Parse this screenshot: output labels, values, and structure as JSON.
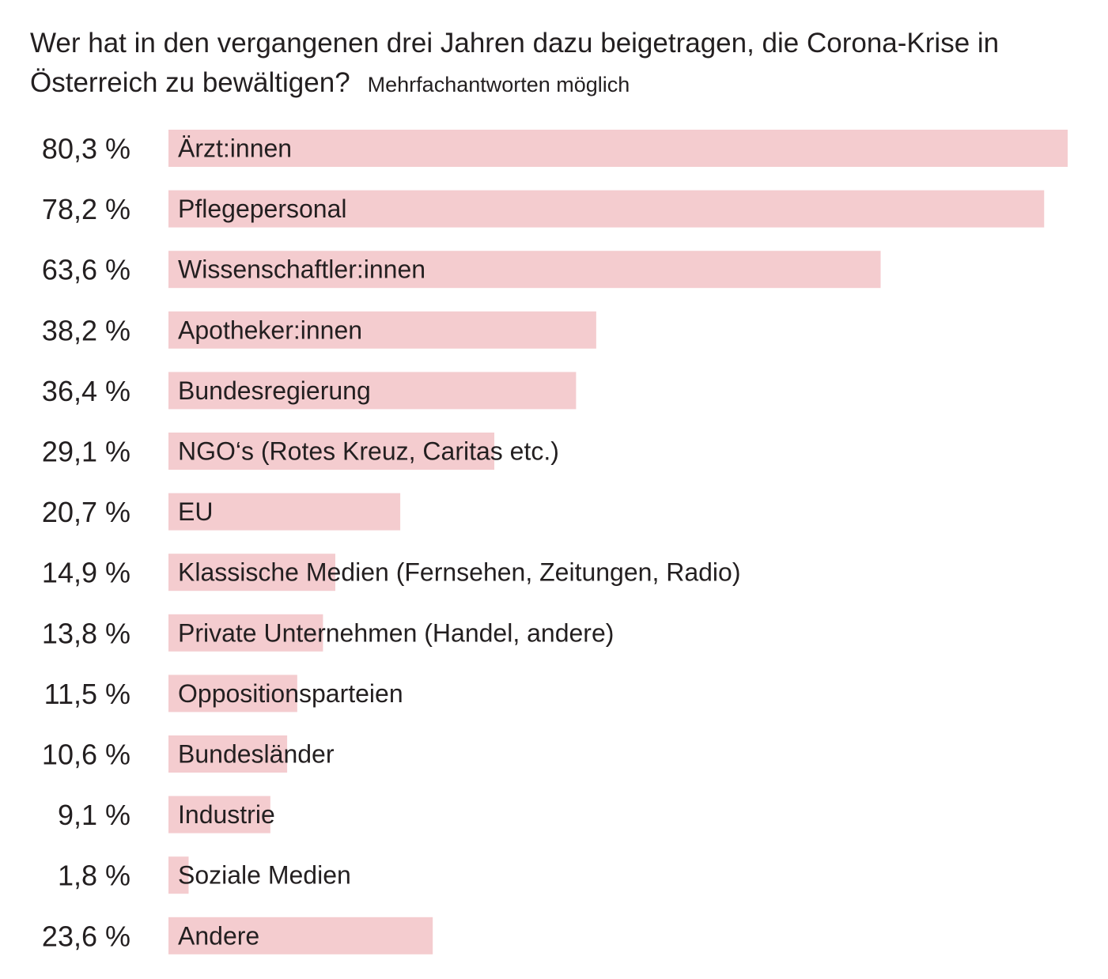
{
  "chart_data": {
    "type": "bar",
    "orientation": "horizontal",
    "title": "Wer hat in den vergangenen drei Jahren dazu beigetragen, die Corona-Krise in Österreich zu bewältigen?",
    "subtitle": "Mehrfachantworten möglich",
    "bar_color": "#f4cccf",
    "text_color": "#231f20",
    "xlim": [
      0,
      80.3
    ],
    "categories": [
      "Ärzt:innen",
      "Pflegepersonal",
      "Wissenschaftler:innen",
      "Apotheker:innen",
      "Bundesregierung",
      "NGO‘s (Rotes Kreuz, Caritas etc.)",
      "EU",
      "Klassische Medien (Fernsehen, Zeitungen, Radio)",
      "Private Unternehmen (Handel, andere)",
      "Oppositionsparteien",
      "Bundesländer",
      "Industrie",
      "Soziale Medien",
      "Andere"
    ],
    "values": [
      80.3,
      78.2,
      63.6,
      38.2,
      36.4,
      29.1,
      20.7,
      14.9,
      13.8,
      11.5,
      10.6,
      9.1,
      1.8,
      23.6
    ],
    "value_labels": [
      "80,3 %",
      "78,2 %",
      "63,6 %",
      "38,2 %",
      "36,4 %",
      "29,1 %",
      "20,7 %",
      "14,9 %",
      "13,8 %",
      "11,5 %",
      "10,6 %",
      "9,1 %",
      "1,8 %",
      "23,6 %"
    ]
  }
}
